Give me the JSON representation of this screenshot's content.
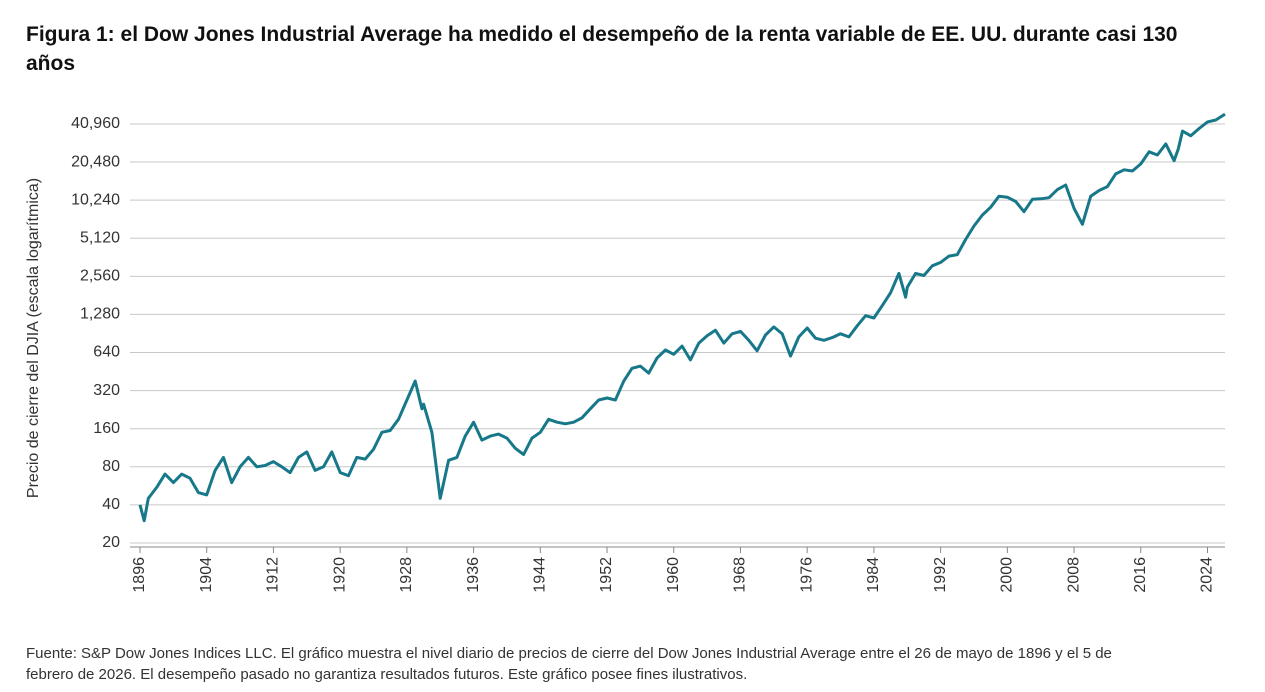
{
  "chart_data": {
    "type": "line",
    "title": "Figura 1: el Dow Jones Industrial Average ha medido el desempeño de la renta variable de EE. UU. durante casi 130 años",
    "y_label": "Precio de cierre del DJIA (escala logarítmica)",
    "source": "Fuente: S&P Dow Jones Indices LLC. El gráfico muestra el nivel diario de precios de cierre del Dow Jones Industrial Average entre el 26 de mayo de 1896 y el 5 de febrero de 2026. El desempeño pasado no garantiza resultados futuros. Este gráfico posee fines ilustrativos.",
    "log_y": true,
    "grid": true,
    "xlim": [
      1896,
      2026.1
    ],
    "xticks": [
      1896,
      1904,
      1912,
      1920,
      1928,
      1936,
      1944,
      1952,
      1960,
      1968,
      1976,
      1984,
      1992,
      2000,
      2008,
      2016,
      2024
    ],
    "ylim": [
      20,
      50000
    ],
    "yticks": [
      20,
      40,
      80,
      160,
      320,
      640,
      {
        "value": 1280,
        "label": "1,280"
      },
      {
        "value": 2560,
        "label": "2,560"
      },
      {
        "value": 5120,
        "label": "5,120"
      },
      {
        "value": 10240,
        "label": "10,240"
      },
      {
        "value": 20480,
        "label": "20,480"
      },
      {
        "value": 40960,
        "label": "40,960"
      }
    ],
    "x": [
      1896,
      1896.5,
      1897,
      1898,
      1899,
      1900,
      1901,
      1902,
      1903,
      1904,
      1905,
      1906,
      1907,
      1908,
      1909,
      1910,
      1911,
      1912,
      1913,
      1914,
      1915,
      1916,
      1917,
      1918,
      1919,
      1920,
      1921,
      1922,
      1923,
      1924,
      1925,
      1926,
      1927,
      1928,
      1929,
      1929.8,
      1930,
      1931,
      1932,
      1933,
      1934,
      1935,
      1936,
      1937,
      1938,
      1939,
      1940,
      1941,
      1942,
      1943,
      1944,
      1945,
      1946,
      1947,
      1948,
      1949,
      1950,
      1951,
      1952,
      1953,
      1954,
      1955,
      1956,
      1957,
      1958,
      1959,
      1960,
      1961,
      1962,
      1963,
      1964,
      1965,
      1966,
      1967,
      1968,
      1969,
      1970,
      1971,
      1972,
      1973,
      1974,
      1975,
      1976,
      1977,
      1978,
      1979,
      1980,
      1981,
      1982,
      1983,
      1984,
      1985,
      1986,
      1987,
      1987.8,
      1988,
      1989,
      1990,
      1991,
      1992,
      1993,
      1994,
      1995,
      1996,
      1997,
      1998,
      1999,
      2000,
      2001,
      2002,
      2003,
      2004,
      2005,
      2006,
      2007,
      2008,
      2009,
      2010,
      2011,
      2012,
      2013,
      2014,
      2015,
      2016,
      2017,
      2018,
      2019,
      2020,
      2020.5,
      2021,
      2022,
      2023,
      2024,
      2025,
      2026.1
    ],
    "series": [
      {
        "name": "DJIA",
        "color": "#17788a",
        "values": [
          40,
          30,
          45,
          55,
          70,
          60,
          70,
          65,
          50,
          48,
          75,
          95,
          60,
          80,
          95,
          80,
          82,
          88,
          80,
          72,
          95,
          105,
          75,
          80,
          105,
          72,
          68,
          95,
          92,
          110,
          150,
          155,
          190,
          270,
          381,
          230,
          250,
          150,
          45,
          90,
          95,
          140,
          180,
          130,
          140,
          145,
          135,
          112,
          100,
          135,
          150,
          190,
          180,
          175,
          180,
          195,
          230,
          270,
          280,
          270,
          380,
          480,
          500,
          440,
          580,
          670,
          620,
          720,
          560,
          760,
          870,
          960,
          760,
          900,
          940,
          800,
          660,
          880,
          1020,
          900,
          600,
          850,
          1000,
          830,
          800,
          840,
          900,
          850,
          1040,
          1250,
          1200,
          1500,
          1900,
          2700,
          1750,
          2100,
          2700,
          2600,
          3100,
          3300,
          3700,
          3800,
          5000,
          6400,
          7800,
          9000,
          11000,
          10800,
          10000,
          8300,
          10400,
          10500,
          10700,
          12400,
          13500,
          8800,
          6600,
          11000,
          12200,
          13100,
          16500,
          17800,
          17400,
          19800,
          24700,
          23300,
          28500,
          21000,
          26000,
          36000,
          33000,
          37700,
          42500,
          44000,
          49000
        ]
      }
    ]
  }
}
